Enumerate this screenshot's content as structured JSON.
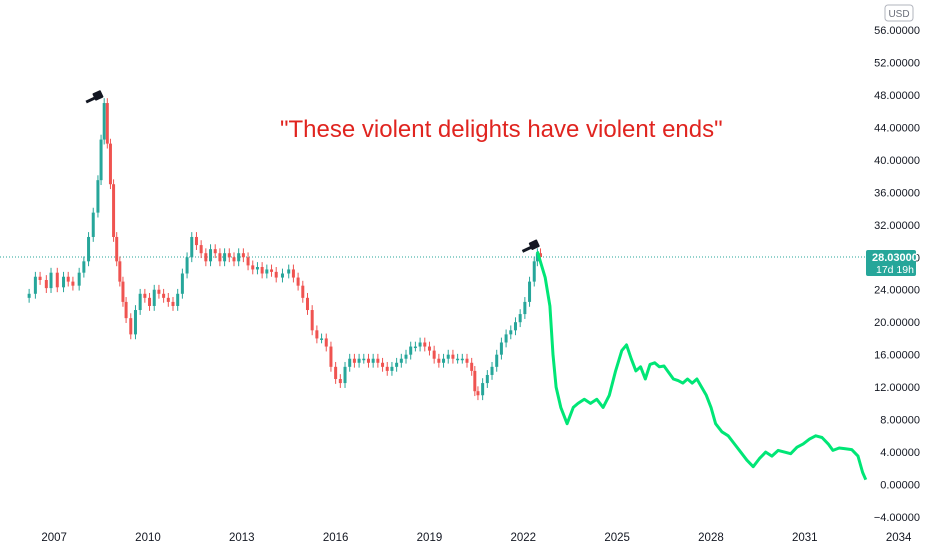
{
  "currency_label": "USD",
  "annotation": "\"These violent delights have violent ends\"",
  "current_price": {
    "value": "28.03000",
    "countdown": "17d 19h"
  },
  "colors": {
    "up": "#26a69a",
    "down": "#ef5350",
    "projection": "#00e676",
    "annotation": "#e0241f",
    "price_line": "#26a69a",
    "axis_text": "#131722"
  },
  "icons": [
    "gavel-icon",
    "gavel-icon"
  ],
  "chart_data": {
    "type": "line",
    "title": "",
    "y_axis": {
      "ticks": [
        "56.00000",
        "52.00000",
        "48.00000",
        "44.00000",
        "40.00000",
        "36.00000",
        "32.00000",
        "28.00000",
        "24.00000",
        "20.00000",
        "16.00000",
        "12.00000",
        "8.00000",
        "4.00000",
        "0.00000",
        "−4.00000"
      ],
      "ylim": [
        -4,
        56
      ],
      "position": "right"
    },
    "x_axis": {
      "ticks": [
        "2007",
        "2010",
        "2013",
        "2016",
        "2019",
        "2022",
        "2025",
        "2028",
        "2031",
        "2034"
      ],
      "xlim": [
        2006.1,
        2034.3
      ]
    },
    "current_price": 28.03,
    "series": [
      {
        "style": "candles",
        "points": [
          [
            2006.2,
            23.5
          ],
          [
            2006.4,
            25.6
          ],
          [
            2006.55,
            25.2
          ],
          [
            2006.75,
            24.2
          ],
          [
            2006.9,
            26.1
          ],
          [
            2007.1,
            24.3
          ],
          [
            2007.3,
            25.6
          ],
          [
            2007.45,
            25.0
          ],
          [
            2007.6,
            24.5
          ],
          [
            2007.8,
            26.1
          ],
          [
            2007.95,
            27.5
          ],
          [
            2008.1,
            30.5
          ],
          [
            2008.25,
            33.5
          ],
          [
            2008.4,
            37.5
          ],
          [
            2008.5,
            42.5
          ],
          [
            2008.6,
            47.0
          ],
          [
            2008.7,
            42.0
          ],
          [
            2008.8,
            37.0
          ],
          [
            2008.9,
            30.5
          ],
          [
            2009.0,
            27.5
          ],
          [
            2009.1,
            25.0
          ],
          [
            2009.2,
            22.5
          ],
          [
            2009.3,
            20.5
          ],
          [
            2009.45,
            18.5
          ],
          [
            2009.6,
            21.5
          ],
          [
            2009.75,
            23.5
          ],
          [
            2009.9,
            23.0
          ],
          [
            2010.05,
            22.0
          ],
          [
            2010.2,
            24.0
          ],
          [
            2010.35,
            23.5
          ],
          [
            2010.5,
            23.0
          ],
          [
            2010.65,
            22.5
          ],
          [
            2010.8,
            22.0
          ],
          [
            2010.95,
            23.5
          ],
          [
            2011.1,
            26.0
          ],
          [
            2011.25,
            28.0
          ],
          [
            2011.4,
            30.5
          ],
          [
            2011.55,
            29.5
          ],
          [
            2011.7,
            28.5
          ],
          [
            2011.85,
            27.5
          ],
          [
            2012.0,
            29.0
          ],
          [
            2012.15,
            28.5
          ],
          [
            2012.3,
            27.5
          ],
          [
            2012.45,
            28.5
          ],
          [
            2012.6,
            28.0
          ],
          [
            2012.75,
            27.5
          ],
          [
            2012.9,
            28.5
          ],
          [
            2013.05,
            28.0
          ],
          [
            2013.2,
            27.0
          ],
          [
            2013.35,
            26.5
          ],
          [
            2013.5,
            26.8
          ],
          [
            2013.65,
            26.0
          ],
          [
            2013.8,
            26.5
          ],
          [
            2013.95,
            26.2
          ],
          [
            2014.1,
            25.5
          ],
          [
            2014.3,
            26.0
          ],
          [
            2014.5,
            26.5
          ],
          [
            2014.65,
            25.5
          ],
          [
            2014.8,
            24.5
          ],
          [
            2014.95,
            23.0
          ],
          [
            2015.1,
            21.5
          ],
          [
            2015.25,
            19.0
          ],
          [
            2015.4,
            18.0
          ],
          [
            2015.55,
            18.0
          ],
          [
            2015.7,
            17.0
          ],
          [
            2015.85,
            14.5
          ],
          [
            2016.0,
            13.0
          ],
          [
            2016.15,
            12.5
          ],
          [
            2016.3,
            14.5
          ],
          [
            2016.45,
            15.5
          ],
          [
            2016.6,
            15.0
          ],
          [
            2016.75,
            15.5
          ],
          [
            2016.9,
            15.5
          ],
          [
            2017.05,
            15.0
          ],
          [
            2017.2,
            15.5
          ],
          [
            2017.35,
            15.0
          ],
          [
            2017.5,
            14.5
          ],
          [
            2017.65,
            14.0
          ],
          [
            2017.8,
            14.5
          ],
          [
            2017.95,
            15.0
          ],
          [
            2018.1,
            15.5
          ],
          [
            2018.25,
            16.0
          ],
          [
            2018.4,
            17.0
          ],
          [
            2018.55,
            17.0
          ],
          [
            2018.7,
            17.5
          ],
          [
            2018.85,
            17.0
          ],
          [
            2019.0,
            16.5
          ],
          [
            2019.15,
            15.5
          ],
          [
            2019.3,
            15.0
          ],
          [
            2019.45,
            15.5
          ],
          [
            2019.6,
            16.0
          ],
          [
            2019.75,
            15.5
          ],
          [
            2019.9,
            15.5
          ],
          [
            2020.05,
            15.5
          ],
          [
            2020.2,
            15.0
          ],
          [
            2020.35,
            14.0
          ],
          [
            2020.45,
            11.5
          ],
          [
            2020.55,
            11.0
          ],
          [
            2020.7,
            12.5
          ],
          [
            2020.85,
            13.5
          ],
          [
            2021.0,
            14.5
          ],
          [
            2021.15,
            16.0
          ],
          [
            2021.3,
            17.5
          ],
          [
            2021.45,
            18.5
          ],
          [
            2021.6,
            19.0
          ],
          [
            2021.75,
            20.0
          ],
          [
            2021.9,
            21.0
          ],
          [
            2022.05,
            22.5
          ],
          [
            2022.2,
            25.0
          ],
          [
            2022.35,
            27.5
          ],
          [
            2022.45,
            28.5
          ],
          [
            2022.55,
            28.03
          ]
        ]
      },
      {
        "style": "projection",
        "points": [
          [
            2022.45,
            28.7
          ],
          [
            2022.7,
            25.5
          ],
          [
            2022.85,
            22.0
          ],
          [
            2022.95,
            16.0
          ],
          [
            2023.05,
            12.0
          ],
          [
            2023.2,
            9.5
          ],
          [
            2023.4,
            7.5
          ],
          [
            2023.6,
            9.5
          ],
          [
            2023.75,
            10.0
          ],
          [
            2023.95,
            10.5
          ],
          [
            2024.15,
            10.0
          ],
          [
            2024.35,
            10.5
          ],
          [
            2024.55,
            9.5
          ],
          [
            2024.75,
            11.0
          ],
          [
            2024.95,
            14.0
          ],
          [
            2025.15,
            16.5
          ],
          [
            2025.3,
            17.2
          ],
          [
            2025.45,
            15.5
          ],
          [
            2025.6,
            14.0
          ],
          [
            2025.75,
            14.5
          ],
          [
            2025.9,
            13.0
          ],
          [
            2026.05,
            14.8
          ],
          [
            2026.2,
            15.0
          ],
          [
            2026.35,
            14.5
          ],
          [
            2026.5,
            14.6
          ],
          [
            2026.65,
            13.8
          ],
          [
            2026.8,
            13.0
          ],
          [
            2026.95,
            12.8
          ],
          [
            2027.1,
            12.5
          ],
          [
            2027.25,
            13.0
          ],
          [
            2027.4,
            12.5
          ],
          [
            2027.55,
            13.0
          ],
          [
            2027.7,
            12.0
          ],
          [
            2027.85,
            11.0
          ],
          [
            2028.0,
            9.5
          ],
          [
            2028.15,
            7.5
          ],
          [
            2028.35,
            6.5
          ],
          [
            2028.55,
            6.0
          ],
          [
            2028.75,
            5.0
          ],
          [
            2028.95,
            4.0
          ],
          [
            2029.15,
            3.0
          ],
          [
            2029.35,
            2.2
          ],
          [
            2029.55,
            3.2
          ],
          [
            2029.75,
            4.0
          ],
          [
            2029.95,
            3.5
          ],
          [
            2030.15,
            4.2
          ],
          [
            2030.35,
            4.0
          ],
          [
            2030.55,
            3.8
          ],
          [
            2030.75,
            4.6
          ],
          [
            2030.95,
            5.0
          ],
          [
            2031.15,
            5.6
          ],
          [
            2031.35,
            6.0
          ],
          [
            2031.55,
            5.8
          ],
          [
            2031.75,
            5.0
          ],
          [
            2031.9,
            4.2
          ],
          [
            2032.1,
            4.5
          ],
          [
            2032.3,
            4.4
          ],
          [
            2032.5,
            4.3
          ],
          [
            2032.7,
            3.5
          ],
          [
            2032.85,
            1.5
          ],
          [
            2032.95,
            0.6
          ]
        ]
      }
    ],
    "annotations": [
      {
        "type": "icon",
        "icon": "gavel-icon",
        "x": 2008.4,
        "y": 47.8
      },
      {
        "type": "icon",
        "icon": "gavel-icon",
        "x": 2022.35,
        "y": 29.4
      }
    ]
  }
}
